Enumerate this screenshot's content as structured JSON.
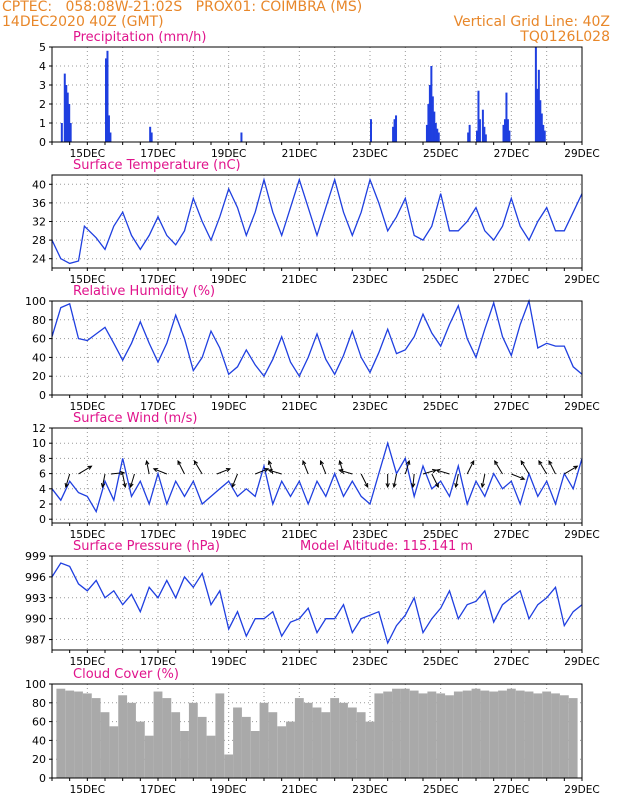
{
  "header": {
    "line1": "CPTEC:   058:08W-21:02S   PROX01: COIMBRA (MS)",
    "line2_left": "14DEC2020 40Z (GMT)",
    "line2_right": "Vertical Grid Line: 40Z",
    "line3_right": "TQ0126L028"
  },
  "colors": {
    "title": "#e0148c",
    "line": "#1f3fe0",
    "bar": "#1f3fe0",
    "cloud": "#a9a9a9",
    "grid": "#9a9a9a",
    "arrow": "#000000"
  },
  "x_axis": {
    "range": [
      "2020-12-14T00",
      "2020-12-29T00"
    ],
    "tick_labels": [
      "15DEC",
      "17DEC",
      "19DEC",
      "21DEC",
      "23DEC",
      "25DEC",
      "27DEC",
      "29DEC"
    ]
  },
  "model_altitude": "Model Altitude: 115.141 m",
  "chart_data": [
    {
      "type": "bar",
      "title": "Precipitation (mm/h)",
      "ylim": [
        0,
        5
      ],
      "yticks": [
        "0",
        "1",
        "2",
        "3",
        "4",
        "5"
      ],
      "x": [
        "2020-12-14T06",
        "2020-12-14T08",
        "2020-12-14T09",
        "2020-12-14T10",
        "2020-12-14T11",
        "2020-12-14T12",
        "2020-12-15T12",
        "2020-12-15T13",
        "2020-12-15T14",
        "2020-12-15T15",
        "2020-12-16T18",
        "2020-12-16T19",
        "2020-12-19T08",
        "2020-12-23T00",
        "2020-12-23T15",
        "2020-12-23T16",
        "2020-12-23T17",
        "2020-12-24T14",
        "2020-12-24T15",
        "2020-12-24T16",
        "2020-12-24T17",
        "2020-12-24T18",
        "2020-12-24T19",
        "2020-12-24T20",
        "2020-12-24T21",
        "2020-12-24T22",
        "2020-12-25T18",
        "2020-12-25T19",
        "2020-12-26T00",
        "2020-12-26T01",
        "2020-12-26T02",
        "2020-12-26T04",
        "2020-12-26T05",
        "2020-12-26T06",
        "2020-12-26T18",
        "2020-12-26T19",
        "2020-12-26T20",
        "2020-12-26T21",
        "2020-12-26T22",
        "2020-12-27T16",
        "2020-12-27T17",
        "2020-12-27T18",
        "2020-12-27T19",
        "2020-12-27T20",
        "2020-12-27T21",
        "2020-12-27T22"
      ],
      "values": [
        1.0,
        3.6,
        3.0,
        2.6,
        2.0,
        1.0,
        4.4,
        4.8,
        1.4,
        0.5,
        0.8,
        0.5,
        0.5,
        1.2,
        0.8,
        1.2,
        1.4,
        0.9,
        2.0,
        3.0,
        4.0,
        2.4,
        1.6,
        1.0,
        0.7,
        0.5,
        0.5,
        0.9,
        0.6,
        2.7,
        1.2,
        1.7,
        0.8,
        0.4,
        0.9,
        1.2,
        2.6,
        1.2,
        0.6,
        5.0,
        2.8,
        3.8,
        2.2,
        1.5,
        0.9,
        0.6
      ]
    },
    {
      "type": "line",
      "title": "Surface Temperature (nC)",
      "ylim": [
        22,
        42
      ],
      "yticks": [
        "24",
        "28",
        "32",
        "36",
        "40"
      ],
      "x": [
        "2020-12-14T00",
        "2020-12-14T06",
        "2020-12-14T12",
        "2020-12-14T18",
        "2020-12-14T22",
        "2020-12-15T06",
        "2020-12-15T12",
        "2020-12-15T18",
        "2020-12-16T00",
        "2020-12-16T06",
        "2020-12-16T12",
        "2020-12-16T18",
        "2020-12-17T00",
        "2020-12-17T06",
        "2020-12-17T12",
        "2020-12-17T18",
        "2020-12-18T00",
        "2020-12-18T06",
        "2020-12-18T12",
        "2020-12-18T18",
        "2020-12-19T00",
        "2020-12-19T06",
        "2020-12-19T12",
        "2020-12-19T18",
        "2020-12-20T00",
        "2020-12-20T06",
        "2020-12-20T12",
        "2020-12-20T18",
        "2020-12-21T00",
        "2020-12-21T06",
        "2020-12-21T12",
        "2020-12-21T18",
        "2020-12-22T00",
        "2020-12-22T06",
        "2020-12-22T12",
        "2020-12-22T18",
        "2020-12-23T00",
        "2020-12-23T06",
        "2020-12-23T12",
        "2020-12-23T18",
        "2020-12-24T00",
        "2020-12-24T06",
        "2020-12-24T12",
        "2020-12-24T18",
        "2020-12-25T00",
        "2020-12-25T06",
        "2020-12-25T12",
        "2020-12-25T18",
        "2020-12-26T00",
        "2020-12-26T06",
        "2020-12-26T12",
        "2020-12-26T18",
        "2020-12-27T00",
        "2020-12-27T06",
        "2020-12-27T12",
        "2020-12-27T18",
        "2020-12-28T00",
        "2020-12-28T06",
        "2020-12-28T12",
        "2020-12-28T18",
        "2020-12-29T00"
      ],
      "values": [
        28,
        24,
        23,
        23.5,
        31,
        28.5,
        26,
        31,
        34,
        29,
        26,
        29,
        33,
        29,
        27,
        30,
        37,
        32,
        28,
        33,
        39,
        35,
        29,
        34,
        41,
        34,
        29,
        35,
        41,
        35,
        29,
        35,
        41,
        34,
        29,
        34,
        41,
        36,
        30,
        33,
        37,
        29,
        28,
        31,
        38,
        30,
        30,
        32,
        35,
        30,
        28,
        31,
        37,
        31,
        28,
        32,
        35,
        30,
        30,
        34,
        38
      ]
    },
    {
      "type": "line",
      "title": "Relative Humidity (%)",
      "ylim": [
        0,
        100
      ],
      "yticks": [
        "0",
        "20",
        "40",
        "60",
        "80",
        "100"
      ],
      "x": [
        "2020-12-14T00",
        "2020-12-14T06",
        "2020-12-14T12",
        "2020-12-14T18",
        "2020-12-15T00",
        "2020-12-15T06",
        "2020-12-15T12",
        "2020-12-15T18",
        "2020-12-16T00",
        "2020-12-16T06",
        "2020-12-16T12",
        "2020-12-16T18",
        "2020-12-17T00",
        "2020-12-17T06",
        "2020-12-17T12",
        "2020-12-17T18",
        "2020-12-18T00",
        "2020-12-18T06",
        "2020-12-18T12",
        "2020-12-18T18",
        "2020-12-19T00",
        "2020-12-19T06",
        "2020-12-19T12",
        "2020-12-19T18",
        "2020-12-20T00",
        "2020-12-20T06",
        "2020-12-20T12",
        "2020-12-20T18",
        "2020-12-21T00",
        "2020-12-21T06",
        "2020-12-21T12",
        "2020-12-21T18",
        "2020-12-22T00",
        "2020-12-22T06",
        "2020-12-22T12",
        "2020-12-22T18",
        "2020-12-23T00",
        "2020-12-23T06",
        "2020-12-23T12",
        "2020-12-23T18",
        "2020-12-24T00",
        "2020-12-24T06",
        "2020-12-24T12",
        "2020-12-24T18",
        "2020-12-25T00",
        "2020-12-25T06",
        "2020-12-25T12",
        "2020-12-25T18",
        "2020-12-26T00",
        "2020-12-26T06",
        "2020-12-26T12",
        "2020-12-26T18",
        "2020-12-27T00",
        "2020-12-27T06",
        "2020-12-27T12",
        "2020-12-27T18",
        "2020-12-28T00",
        "2020-12-28T06",
        "2020-12-28T12",
        "2020-12-28T18",
        "2020-12-29T00"
      ],
      "values": [
        62,
        93,
        97,
        60,
        58,
        65,
        72,
        55,
        37,
        55,
        78,
        55,
        35,
        55,
        85,
        60,
        26,
        40,
        68,
        50,
        22,
        30,
        48,
        32,
        20,
        38,
        62,
        35,
        20,
        40,
        65,
        38,
        22,
        42,
        68,
        40,
        24,
        45,
        70,
        44,
        48,
        62,
        86,
        66,
        52,
        75,
        95,
        60,
        40,
        70,
        98,
        62,
        42,
        75,
        100,
        50,
        55,
        52,
        52,
        30,
        22
      ]
    },
    {
      "type": "line",
      "title": "Surface Wind (m/s)",
      "ylim": [
        -0.5,
        12
      ],
      "yticks": [
        "0",
        "2",
        "4",
        "6",
        "8",
        "10",
        "12"
      ],
      "x": [
        "2020-12-14T00",
        "2020-12-14T06",
        "2020-12-14T12",
        "2020-12-14T18",
        "2020-12-15T00",
        "2020-12-15T06",
        "2020-12-15T12",
        "2020-12-15T18",
        "2020-12-16T00",
        "2020-12-16T06",
        "2020-12-16T12",
        "2020-12-16T18",
        "2020-12-17T00",
        "2020-12-17T06",
        "2020-12-17T12",
        "2020-12-17T18",
        "2020-12-18T00",
        "2020-12-18T06",
        "2020-12-18T12",
        "2020-12-18T18",
        "2020-12-19T00",
        "2020-12-19T06",
        "2020-12-19T12",
        "2020-12-19T18",
        "2020-12-20T00",
        "2020-12-20T06",
        "2020-12-20T12",
        "2020-12-20T18",
        "2020-12-21T00",
        "2020-12-21T06",
        "2020-12-21T12",
        "2020-12-21T18",
        "2020-12-22T00",
        "2020-12-22T06",
        "2020-12-22T12",
        "2020-12-22T18",
        "2020-12-23T00",
        "2020-12-23T06",
        "2020-12-23T12",
        "2020-12-23T18",
        "2020-12-24T00",
        "2020-12-24T06",
        "2020-12-24T12",
        "2020-12-24T18",
        "2020-12-25T00",
        "2020-12-25T06",
        "2020-12-25T12",
        "2020-12-25T18",
        "2020-12-26T00",
        "2020-12-26T06",
        "2020-12-26T12",
        "2020-12-26T18",
        "2020-12-27T00",
        "2020-12-27T06",
        "2020-12-27T12",
        "2020-12-27T18",
        "2020-12-28T00",
        "2020-12-28T06",
        "2020-12-28T12",
        "2020-12-28T18",
        "2020-12-29T00"
      ],
      "values": [
        4,
        2.5,
        5,
        3.5,
        3,
        1,
        5,
        2.5,
        8,
        3,
        5,
        2,
        6,
        2,
        5,
        3,
        5,
        2,
        3,
        4,
        5,
        3,
        4,
        3,
        7,
        2,
        5,
        3,
        5,
        2,
        5,
        3,
        6,
        3,
        5,
        3,
        2,
        6,
        10,
        6,
        8,
        3,
        7,
        4,
        5,
        3,
        7,
        2,
        5,
        3,
        6,
        4,
        5,
        2,
        6,
        3,
        5,
        2,
        6,
        4,
        8
      ],
      "vectors": [
        {
          "x": "2020-12-14T12",
          "u": -0.3,
          "v": -1
        },
        {
          "x": "2020-12-14T18",
          "u": 1,
          "v": 0.6
        },
        {
          "x": "2020-12-15T12",
          "u": -0.2,
          "v": -1
        },
        {
          "x": "2020-12-15T16",
          "u": 1,
          "v": 0.1
        },
        {
          "x": "2020-12-16T00",
          "u": 0.2,
          "v": -1
        },
        {
          "x": "2020-12-16T08",
          "u": -0.3,
          "v": -1
        },
        {
          "x": "2020-12-16T18",
          "u": -0.2,
          "v": 1
        },
        {
          "x": "2020-12-17T06",
          "u": -1,
          "v": 0.4
        },
        {
          "x": "2020-12-17T18",
          "u": -0.5,
          "v": 1
        },
        {
          "x": "2020-12-18T06",
          "u": -0.6,
          "v": 1
        },
        {
          "x": "2020-12-18T16",
          "u": 1,
          "v": 0.4
        },
        {
          "x": "2020-12-19T06",
          "u": -0.4,
          "v": -1
        },
        {
          "x": "2020-12-19T18",
          "u": 1,
          "v": 0.4
        },
        {
          "x": "2020-12-20T06",
          "u": -0.3,
          "v": 1
        },
        {
          "x": "2020-12-20T12",
          "u": -1,
          "v": 0.3
        },
        {
          "x": "2020-12-21T06",
          "u": -0.4,
          "v": 1
        },
        {
          "x": "2020-12-21T18",
          "u": -0.4,
          "v": 1
        },
        {
          "x": "2020-12-22T06",
          "u": -0.3,
          "v": 1
        },
        {
          "x": "2020-12-22T12",
          "u": -1,
          "v": 0.3
        },
        {
          "x": "2020-12-22T18",
          "u": 0.5,
          "v": -1
        },
        {
          "x": "2020-12-23T12",
          "u": 0,
          "v": -1
        },
        {
          "x": "2020-12-23T18",
          "u": -0.2,
          "v": -1
        },
        {
          "x": "2020-12-24T00",
          "u": 0.3,
          "v": 1
        },
        {
          "x": "2020-12-24T06",
          "u": -0.1,
          "v": -1
        },
        {
          "x": "2020-12-24T12",
          "u": 1,
          "v": 0.3
        },
        {
          "x": "2020-12-24T18",
          "u": 0.5,
          "v": -1
        },
        {
          "x": "2020-12-25T06",
          "u": -1,
          "v": 0.3
        },
        {
          "x": "2020-12-25T12",
          "u": -0.2,
          "v": -1
        },
        {
          "x": "2020-12-25T18",
          "u": 0.5,
          "v": 1
        },
        {
          "x": "2020-12-26T06",
          "u": -0.2,
          "v": -1
        },
        {
          "x": "2020-12-26T18",
          "u": -0.6,
          "v": 1
        },
        {
          "x": "2020-12-27T00",
          "u": 1,
          "v": -0.4
        },
        {
          "x": "2020-12-27T12",
          "u": -0.6,
          "v": 1
        },
        {
          "x": "2020-12-28T00",
          "u": -0.6,
          "v": 1
        },
        {
          "x": "2020-12-28T06",
          "u": -0.5,
          "v": 1
        },
        {
          "x": "2020-12-28T12",
          "u": 1,
          "v": 0.6
        }
      ]
    },
    {
      "type": "line",
      "title": "Surface Pressure (hPa)",
      "ylim": [
        985.5,
        999
      ],
      "yticks": [
        "987",
        "990",
        "993",
        "996",
        "999"
      ],
      "x": [
        "2020-12-14T00",
        "2020-12-14T06",
        "2020-12-14T12",
        "2020-12-14T18",
        "2020-12-15T00",
        "2020-12-15T06",
        "2020-12-15T12",
        "2020-12-15T18",
        "2020-12-16T00",
        "2020-12-16T06",
        "2020-12-16T12",
        "2020-12-16T18",
        "2020-12-17T00",
        "2020-12-17T06",
        "2020-12-17T12",
        "2020-12-17T18",
        "2020-12-18T00",
        "2020-12-18T06",
        "2020-12-18T12",
        "2020-12-18T18",
        "2020-12-19T00",
        "2020-12-19T06",
        "2020-12-19T12",
        "2020-12-19T18",
        "2020-12-20T00",
        "2020-12-20T06",
        "2020-12-20T12",
        "2020-12-20T18",
        "2020-12-21T00",
        "2020-12-21T06",
        "2020-12-21T12",
        "2020-12-21T18",
        "2020-12-22T00",
        "2020-12-22T06",
        "2020-12-22T12",
        "2020-12-22T18",
        "2020-12-23T00",
        "2020-12-23T06",
        "2020-12-23T12",
        "2020-12-23T18",
        "2020-12-24T00",
        "2020-12-24T06",
        "2020-12-24T12",
        "2020-12-24T18",
        "2020-12-25T00",
        "2020-12-25T06",
        "2020-12-25T12",
        "2020-12-25T18",
        "2020-12-26T00",
        "2020-12-26T06",
        "2020-12-26T12",
        "2020-12-26T18",
        "2020-12-27T00",
        "2020-12-27T06",
        "2020-12-27T12",
        "2020-12-27T18",
        "2020-12-28T00",
        "2020-12-28T06",
        "2020-12-28T12",
        "2020-12-28T18",
        "2020-12-29T00"
      ],
      "values": [
        996,
        998,
        997.5,
        995,
        994,
        995.5,
        993,
        994,
        992,
        993.5,
        991,
        994.5,
        993,
        995.5,
        993,
        996,
        994.5,
        996.5,
        992,
        994,
        988.5,
        991,
        987.5,
        990,
        990,
        991,
        987.5,
        989.5,
        990,
        991.5,
        988,
        990,
        990,
        992,
        988,
        990,
        990.5,
        991,
        986.5,
        989,
        990.5,
        993,
        988,
        990,
        991.5,
        994,
        990,
        992,
        992.5,
        994,
        989.5,
        992,
        993,
        994,
        990,
        992,
        993,
        994.5,
        989,
        991,
        992
      ]
    },
    {
      "type": "bar",
      "title": "Cloud Cover (%)",
      "ylim": [
        0,
        100
      ],
      "yticks": [
        "0",
        "20",
        "40",
        "60",
        "80",
        "100"
      ],
      "x": [
        "2020-12-14T00",
        "2020-12-14T06",
        "2020-12-14T12",
        "2020-12-14T18",
        "2020-12-15T00",
        "2020-12-15T06",
        "2020-12-15T12",
        "2020-12-15T18",
        "2020-12-16T00",
        "2020-12-16T06",
        "2020-12-16T12",
        "2020-12-16T18",
        "2020-12-17T00",
        "2020-12-17T06",
        "2020-12-17T12",
        "2020-12-17T18",
        "2020-12-18T00",
        "2020-12-18T06",
        "2020-12-18T12",
        "2020-12-18T18",
        "2020-12-19T00",
        "2020-12-19T06",
        "2020-12-19T12",
        "2020-12-19T18",
        "2020-12-20T00",
        "2020-12-20T06",
        "2020-12-20T12",
        "2020-12-20T18",
        "2020-12-21T00",
        "2020-12-21T06",
        "2020-12-21T12",
        "2020-12-21T18",
        "2020-12-22T00",
        "2020-12-22T06",
        "2020-12-22T12",
        "2020-12-22T18",
        "2020-12-23T00",
        "2020-12-23T06",
        "2020-12-23T12",
        "2020-12-23T18",
        "2020-12-24T00",
        "2020-12-24T06",
        "2020-12-24T12",
        "2020-12-24T18",
        "2020-12-25T00",
        "2020-12-25T06",
        "2020-12-25T12",
        "2020-12-25T18",
        "2020-12-26T00",
        "2020-12-26T06",
        "2020-12-26T12",
        "2020-12-26T18",
        "2020-12-27T00",
        "2020-12-27T06",
        "2020-12-27T12",
        "2020-12-27T18",
        "2020-12-28T00",
        "2020-12-28T06",
        "2020-12-28T12",
        "2020-12-28T18",
        "2020-12-29T00"
      ],
      "values": [
        0,
        95,
        93,
        92,
        90,
        85,
        70,
        55,
        88,
        80,
        60,
        45,
        92,
        85,
        70,
        50,
        80,
        65,
        45,
        90,
        25,
        75,
        65,
        50,
        80,
        70,
        55,
        60,
        85,
        80,
        75,
        70,
        85,
        80,
        75,
        70,
        60,
        90,
        92,
        95,
        95,
        93,
        90,
        92,
        90,
        88,
        92,
        93,
        95,
        93,
        92,
        93,
        95,
        93,
        92,
        90,
        92,
        90,
        88,
        85,
        0
      ]
    }
  ]
}
